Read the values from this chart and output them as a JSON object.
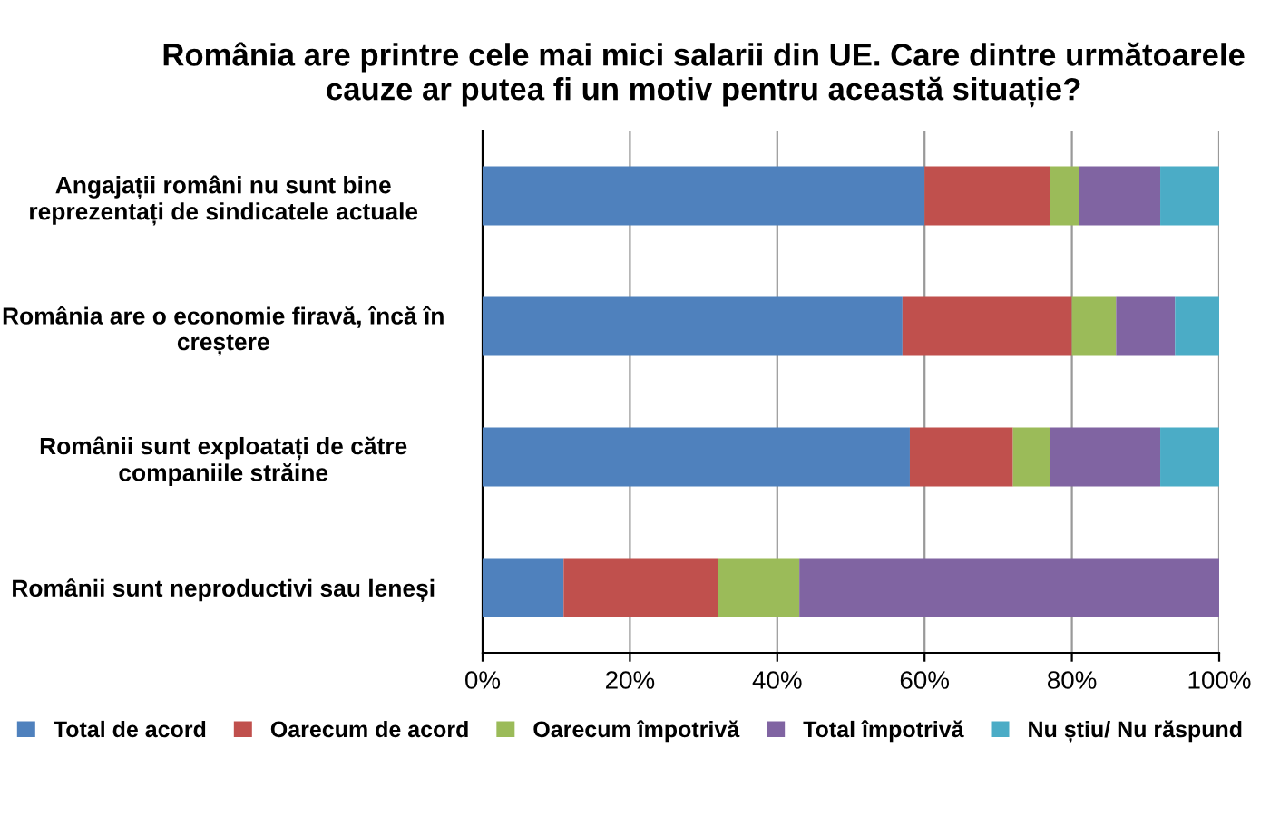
{
  "chart_data": {
    "type": "bar",
    "orientation": "horizontal",
    "stacked": true,
    "title": "România are printre cele mai mici salarii din UE. Care dintre următoarele cauze ar putea fi un motiv pentru această situație?",
    "categories": [
      "Angajații români nu sunt bine reprezentați de sindicatele actuale",
      "România are o economie firavă, încă în creștere",
      "Românii sunt exploatați de către companiile străine",
      "Românii sunt neproductivi sau leneși"
    ],
    "series": [
      {
        "name": "Total de acord",
        "color": "#4f81bd",
        "values": [
          60,
          57,
          58,
          11
        ]
      },
      {
        "name": "Oarecum de acord",
        "color": "#c0504d",
        "values": [
          17,
          23,
          14,
          21
        ]
      },
      {
        "name": "Oarecum împotrivă",
        "color": "#9bbb59",
        "values": [
          4,
          6,
          5,
          11
        ]
      },
      {
        "name": "Total împotrivă",
        "color": "#8064a2",
        "values": [
          11,
          8,
          15,
          57
        ]
      },
      {
        "name": "Nu știu/ Nu răspund",
        "color": "#4bacc6",
        "values": [
          8,
          6,
          8,
          0
        ]
      }
    ],
    "xlim": [
      0,
      100
    ],
    "xticks": [
      {
        "value": 0,
        "label": "0%"
      },
      {
        "value": 20,
        "label": "20%"
      },
      {
        "value": 40,
        "label": "40%"
      },
      {
        "value": 60,
        "label": "60%"
      },
      {
        "value": 80,
        "label": "80%"
      },
      {
        "value": 100,
        "label": "100%"
      }
    ],
    "grid": "x",
    "legend": "bottom"
  }
}
